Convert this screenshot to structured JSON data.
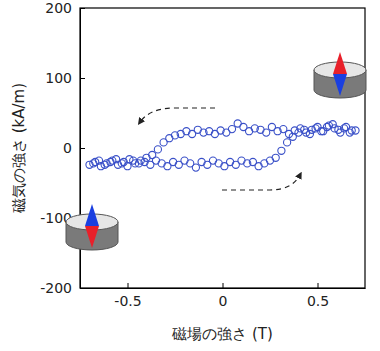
{
  "chart_data": {
    "type": "scatter",
    "x_label": "磁場の強さ (T)",
    "y_label": "磁気の強さ (kA/m)",
    "xlim": [
      -0.75,
      0.75
    ],
    "ylim": [
      -200,
      200
    ],
    "xticks": [
      -0.5,
      0,
      0.5
    ],
    "yticks": [
      -200,
      -100,
      0,
      100,
      200
    ],
    "color": "#3a50c8",
    "marker": "circle-open",
    "grid": false,
    "x": [
      0.68,
      0.65,
      0.62,
      0.59,
      0.56,
      0.53,
      0.5,
      0.47,
      0.44,
      0.41,
      0.38,
      0.35,
      0.32,
      0.29,
      0.26,
      0.23,
      0.2,
      0.17,
      0.14,
      0.11,
      0.08,
      0.05,
      0.02,
      -0.01,
      -0.04,
      -0.07,
      -0.1,
      -0.13,
      -0.16,
      -0.19,
      -0.22,
      -0.25,
      -0.28,
      -0.31,
      -0.34,
      -0.37,
      -0.4,
      -0.43,
      -0.46,
      -0.49,
      -0.52,
      -0.55,
      -0.58,
      -0.61,
      -0.64,
      -0.67,
      -0.7,
      -0.68,
      -0.65,
      -0.62,
      -0.59,
      -0.56,
      -0.53,
      -0.5,
      -0.47,
      -0.44,
      -0.41,
      -0.38,
      -0.35,
      -0.32,
      -0.29,
      -0.26,
      -0.23,
      -0.2,
      -0.17,
      -0.14,
      -0.11,
      -0.08,
      -0.05,
      -0.02,
      0.01,
      0.04,
      0.07,
      0.1,
      0.13,
      0.16,
      0.19,
      0.22,
      0.25,
      0.28,
      0.31,
      0.34,
      0.37,
      0.4,
      0.43,
      0.46,
      0.49,
      0.52,
      0.55,
      0.58,
      0.61,
      0.64,
      0.67,
      0.7
    ],
    "values": [
      25,
      30,
      22,
      28,
      32,
      24,
      30,
      26,
      22,
      28,
      25,
      20,
      27,
      24,
      30,
      22,
      26,
      28,
      24,
      30,
      35,
      27,
      22,
      25,
      20,
      24,
      22,
      26,
      20,
      24,
      20,
      18,
      14,
      8,
      -2,
      -10,
      -14,
      -18,
      -22,
      -16,
      -20,
      -24,
      -18,
      -22,
      -26,
      -20,
      -24,
      -22,
      -18,
      -24,
      -20,
      -16,
      -22,
      -26,
      -18,
      -22,
      -20,
      -24,
      -18,
      -22,
      -26,
      -20,
      -24,
      -18,
      -22,
      -28,
      -20,
      -24,
      -18,
      -22,
      -26,
      -20,
      -24,
      -18,
      -22,
      -20,
      -26,
      -22,
      -18,
      -14,
      -4,
      8,
      16,
      22,
      26,
      20,
      28,
      24,
      30,
      34,
      26,
      28,
      22,
      25
    ]
  }
}
